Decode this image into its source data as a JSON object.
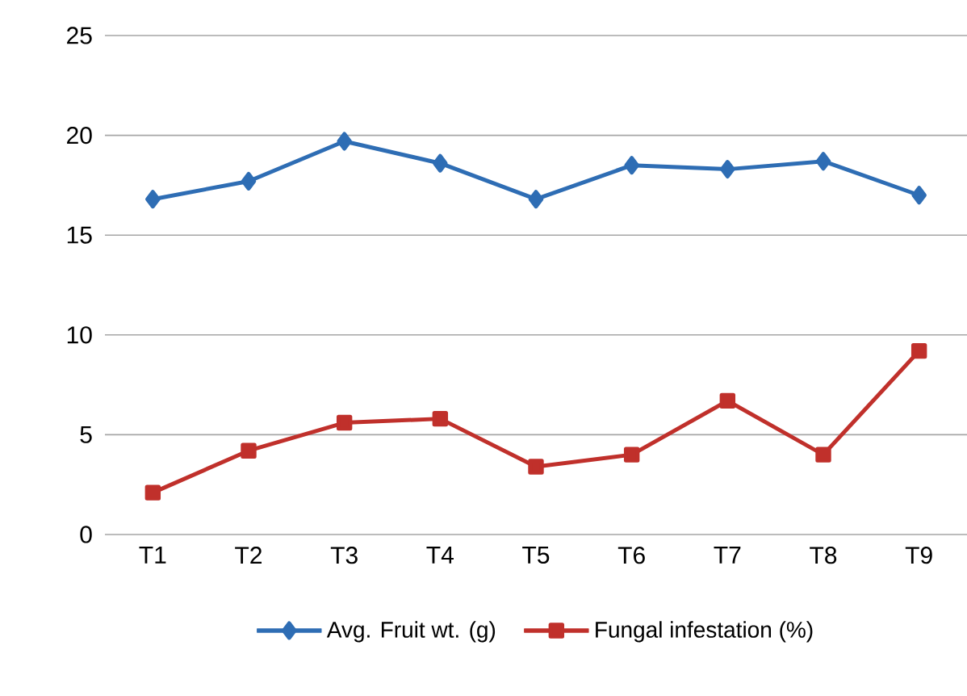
{
  "chart_data": {
    "type": "line",
    "categories": [
      "T1",
      "T2",
      "T3",
      "T4",
      "T5",
      "T6",
      "T7",
      "T8",
      "T9"
    ],
    "series": [
      {
        "name": "Avg. Fruit wt. (g)",
        "color": "#2e6db4",
        "marker": "diamond",
        "values": [
          16.8,
          17.7,
          19.7,
          18.6,
          16.8,
          18.5,
          18.3,
          18.7,
          17.0
        ]
      },
      {
        "name": "Fungal infestation (%)",
        "color": "#c0302b",
        "marker": "square",
        "values": [
          2.1,
          4.2,
          5.6,
          5.8,
          3.4,
          4.0,
          6.7,
          4.0,
          9.2
        ]
      }
    ],
    "ylim": [
      0,
      25
    ],
    "yticks": [
      0,
      5,
      10,
      15,
      20,
      25
    ],
    "grid": "y",
    "legend": "bottom"
  }
}
